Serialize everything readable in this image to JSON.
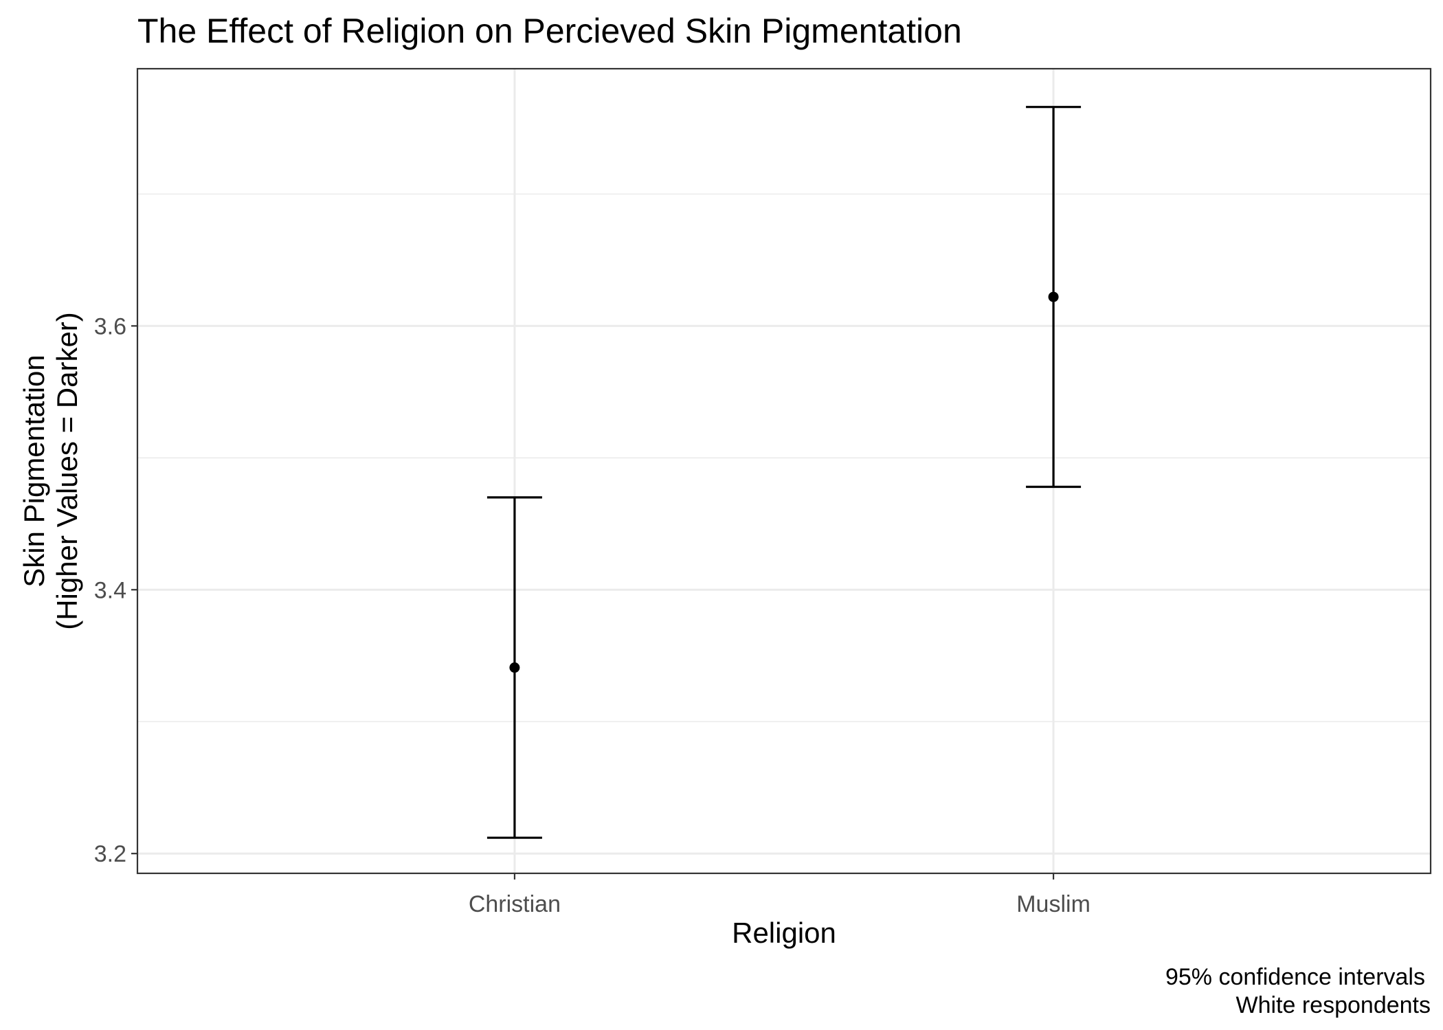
{
  "chart_data": {
    "type": "errorbar",
    "title": "The Effect of Religion on Percieved Skin Pigmentation",
    "xlabel": "Religion",
    "ylabel_lines": [
      "Skin Pigmentation",
      "(Higher Values = Darker)"
    ],
    "categories": [
      "Christian",
      "Muslim"
    ],
    "points": [
      {
        "category": "Christian",
        "estimate": 3.341,
        "lower": 3.212,
        "upper": 3.47
      },
      {
        "category": "Muslim",
        "estimate": 3.622,
        "lower": 3.478,
        "upper": 3.766
      }
    ],
    "ylim": [
      3.185,
      3.795
    ],
    "y_major_ticks": [
      3.2,
      3.4,
      3.6
    ],
    "y_tick_labels": [
      "3.2",
      "3.4",
      "3.6"
    ],
    "y_minor_ticks": [
      3.3,
      3.5,
      3.7
    ],
    "grid": true,
    "caption_lines": [
      "95% confidence intervals",
      "White respondents"
    ]
  }
}
